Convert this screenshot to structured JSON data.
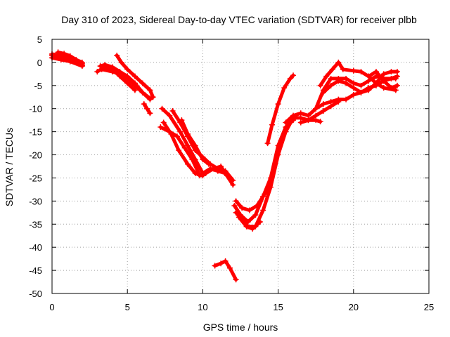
{
  "chart_data": {
    "type": "scatter",
    "title": "Day 310 of 2023, Sidereal Day-to-day VTEC variation (SDTVAR) for receiver plbb",
    "xlabel": "GPS time / hours",
    "ylabel": "SDTVAR / TECUs",
    "xlim": [
      0,
      25
    ],
    "ylim": [
      -50,
      5
    ],
    "xticks": [
      0,
      5,
      10,
      15,
      20,
      25
    ],
    "yticks": [
      5,
      0,
      -5,
      -10,
      -15,
      -20,
      -25,
      -30,
      -35,
      -40,
      -45,
      -50
    ],
    "grid": true,
    "marker": "+",
    "color": "#ff0000",
    "series": [
      {
        "name": "arc-early-1",
        "points": [
          [
            0,
            1.5
          ],
          [
            0.5,
            1.2
          ],
          [
            1,
            0.8
          ],
          [
            1.5,
            0.3
          ],
          [
            2,
            -0.3
          ]
        ]
      },
      {
        "name": "arc-early-2",
        "points": [
          [
            0,
            1.8
          ],
          [
            0.5,
            1.6
          ],
          [
            1,
            1.2
          ],
          [
            1.4,
            0.5
          ],
          [
            2,
            -0.6
          ]
        ]
      },
      {
        "name": "arc-early-3",
        "points": [
          [
            0,
            1.0
          ],
          [
            0.6,
            0.6
          ],
          [
            1.2,
            0.2
          ],
          [
            2,
            -0.8
          ]
        ]
      },
      {
        "name": "arc-early-4",
        "points": [
          [
            0.4,
            2.2
          ],
          [
            0.8,
            1.9
          ],
          [
            1.2,
            1.4
          ],
          [
            1.6,
            0.6
          ],
          [
            2,
            0.0
          ]
        ]
      },
      {
        "name": "arc-mid-1",
        "points": [
          [
            3.2,
            -0.8
          ],
          [
            3.5,
            -0.5
          ],
          [
            4,
            -1.0
          ],
          [
            4.5,
            -2.0
          ],
          [
            5,
            -3.0
          ],
          [
            5.5,
            -4.5
          ],
          [
            6,
            -6.5
          ],
          [
            6.5,
            -8.0
          ]
        ]
      },
      {
        "name": "arc-mid-2",
        "points": [
          [
            3.3,
            -1.5
          ],
          [
            4,
            -2.0
          ],
          [
            4.5,
            -2.5
          ],
          [
            5,
            -3.5
          ],
          [
            5.5,
            -5.0
          ],
          [
            6,
            -6.5
          ],
          [
            6.5,
            -7.8
          ]
        ]
      },
      {
        "name": "arc-mid-3",
        "points": [
          [
            4.3,
            1.5
          ],
          [
            4.6,
            0.0
          ],
          [
            5,
            -1.5
          ],
          [
            5.5,
            -3.0
          ],
          [
            6,
            -4.5
          ],
          [
            6.5,
            -6.0
          ],
          [
            6.7,
            -7.5
          ]
        ]
      },
      {
        "name": "arc-mid-4",
        "points": [
          [
            3.0,
            -2.0
          ],
          [
            3.5,
            -1.0
          ],
          [
            4,
            -1.5
          ],
          [
            4.5,
            -3.0
          ],
          [
            5,
            -4.5
          ],
          [
            5.5,
            -6.0
          ]
        ]
      },
      {
        "name": "arc-mid-5",
        "points": [
          [
            6.1,
            -9.0
          ],
          [
            6.3,
            -10.0
          ],
          [
            6.5,
            -11.0
          ]
        ]
      },
      {
        "name": "arc-big-1",
        "points": [
          [
            7.3,
            -10.0
          ],
          [
            7.8,
            -11.5
          ],
          [
            8.5,
            -15.0
          ],
          [
            9,
            -18.0
          ],
          [
            9.5,
            -21.0
          ],
          [
            10,
            -24.0
          ],
          [
            10.5,
            -23.0
          ],
          [
            11,
            -23.5
          ],
          [
            11.5,
            -24.0
          ],
          [
            12,
            -26.5
          ]
        ]
      },
      {
        "name": "arc-big-2",
        "points": [
          [
            7.2,
            -14.0
          ],
          [
            7.8,
            -15.0
          ],
          [
            8.3,
            -16.0
          ],
          [
            8.8,
            -18.5
          ],
          [
            9.3,
            -21.0
          ],
          [
            9.8,
            -24.5
          ],
          [
            10.2,
            -24.0
          ],
          [
            10.7,
            -23.0
          ],
          [
            11.2,
            -22.5
          ],
          [
            11.6,
            -24.5
          ]
        ]
      },
      {
        "name": "arc-big-3",
        "points": [
          [
            8.0,
            -10.5
          ],
          [
            8.5,
            -13.0
          ],
          [
            9,
            -16.0
          ],
          [
            9.5,
            -19.0
          ],
          [
            10,
            -20.5
          ],
          [
            10.5,
            -22.0
          ],
          [
            11,
            -23.0
          ],
          [
            11.5,
            -23.5
          ],
          [
            12,
            -25.5
          ]
        ]
      },
      {
        "name": "arc-big-4",
        "points": [
          [
            7.4,
            -13.0
          ],
          [
            7.9,
            -15.5
          ],
          [
            8.4,
            -19.0
          ],
          [
            9,
            -22.0
          ],
          [
            9.5,
            -24.0
          ],
          [
            10,
            -24.5
          ]
        ]
      },
      {
        "name": "arc-big-5",
        "points": [
          [
            8.6,
            -12.5
          ],
          [
            9,
            -15.5
          ],
          [
            9.5,
            -18.0
          ],
          [
            10,
            -21.0
          ],
          [
            10.4,
            -22.0
          ]
        ]
      },
      {
        "name": "arc-trough-1",
        "points": [
          [
            12.1,
            -31.0
          ],
          [
            12.5,
            -33.0
          ],
          [
            13,
            -34.5
          ],
          [
            13.5,
            -33.0
          ],
          [
            14,
            -29.0
          ],
          [
            14.5,
            -25.0
          ],
          [
            15,
            -18.0
          ],
          [
            15.5,
            -14.0
          ],
          [
            16,
            -12.5
          ]
        ]
      },
      {
        "name": "arc-trough-2",
        "points": [
          [
            12.2,
            -32.5
          ],
          [
            12.6,
            -34.0
          ],
          [
            13,
            -35.5
          ],
          [
            13.5,
            -35.5
          ],
          [
            14,
            -32.0
          ],
          [
            14.5,
            -27.0
          ],
          [
            15,
            -20.0
          ],
          [
            15.5,
            -15.0
          ],
          [
            16,
            -12.0
          ]
        ]
      },
      {
        "name": "arc-trough-3",
        "points": [
          [
            12.2,
            -30.0
          ],
          [
            12.6,
            -31.5
          ],
          [
            13.1,
            -32.0
          ],
          [
            13.6,
            -31.0
          ],
          [
            14.1,
            -28.5
          ],
          [
            14.5,
            -26.0
          ]
        ]
      },
      {
        "name": "arc-trough-4",
        "points": [
          [
            12.4,
            -33.5
          ],
          [
            12.9,
            -35.5
          ],
          [
            13.3,
            -36.0
          ],
          [
            13.8,
            -34.5
          ]
        ]
      },
      {
        "name": "arc-isolated",
        "points": [
          [
            10.8,
            -44.0
          ],
          [
            11.2,
            -43.5
          ],
          [
            11.5,
            -43.0
          ],
          [
            11.8,
            -44.5
          ],
          [
            12.2,
            -47.0
          ]
        ]
      },
      {
        "name": "arc-recovery",
        "points": [
          [
            14.3,
            -17.5
          ],
          [
            14.6,
            -13.5
          ],
          [
            15,
            -9.0
          ],
          [
            15.4,
            -5.5
          ],
          [
            15.8,
            -3.5
          ],
          [
            16.0,
            -2.8
          ]
        ]
      },
      {
        "name": "arc-late-1",
        "points": [
          [
            15.5,
            -13.0
          ],
          [
            16,
            -11.5
          ],
          [
            16.5,
            -11.0
          ],
          [
            17,
            -11.5
          ],
          [
            17.5,
            -10.0
          ],
          [
            18,
            -6.0
          ],
          [
            18.5,
            -3.5
          ],
          [
            19,
            -3.5
          ],
          [
            19.5,
            -3.5
          ],
          [
            20,
            -4.5
          ],
          [
            20.5,
            -5.0
          ],
          [
            21,
            -4.0
          ],
          [
            21.5,
            -3.0
          ],
          [
            22,
            -3.5
          ],
          [
            22.8,
            -3.5
          ]
        ]
      },
      {
        "name": "arc-late-2",
        "points": [
          [
            16,
            -12.0
          ],
          [
            16.5,
            -12.0
          ],
          [
            17,
            -12.5
          ],
          [
            17.5,
            -12.5
          ],
          [
            17.8,
            -12.8
          ]
        ]
      },
      {
        "name": "arc-late-3",
        "points": [
          [
            17.5,
            -10.0
          ],
          [
            18,
            -9.0
          ],
          [
            18.5,
            -8.5
          ],
          [
            19,
            -8.0
          ],
          [
            19.5,
            -8.0
          ],
          [
            20,
            -7.0
          ],
          [
            20.5,
            -6.5
          ],
          [
            21,
            -5.5
          ],
          [
            21.5,
            -5.0
          ],
          [
            22,
            -4.0
          ],
          [
            22.5,
            -3.5
          ],
          [
            22.9,
            -3.0
          ]
        ]
      },
      {
        "name": "arc-late-4",
        "points": [
          [
            17.8,
            -5.0
          ],
          [
            18.2,
            -3.0
          ],
          [
            18.6,
            -1.5
          ],
          [
            19.0,
            0.0
          ],
          [
            19.3,
            -1.5
          ],
          [
            20,
            -1.8
          ],
          [
            20.5,
            -2.0
          ],
          [
            21,
            -3.0
          ],
          [
            21.5,
            -4.5
          ],
          [
            22,
            -5.5
          ],
          [
            22.8,
            -6.0
          ]
        ]
      },
      {
        "name": "arc-late-5",
        "points": [
          [
            18.0,
            -6.5
          ],
          [
            18.5,
            -5.0
          ],
          [
            19,
            -4.0
          ],
          [
            19.5,
            -4.5
          ],
          [
            20,
            -5.5
          ],
          [
            20.5,
            -6.5
          ],
          [
            21,
            -6.0
          ],
          [
            21.5,
            -4.5
          ],
          [
            22,
            -2.5
          ],
          [
            22.5,
            -2.0
          ],
          [
            22.9,
            -2.0
          ]
        ]
      },
      {
        "name": "arc-late-6",
        "points": [
          [
            16.5,
            -13.0
          ],
          [
            17,
            -12.5
          ],
          [
            17.5,
            -11.5
          ],
          [
            18,
            -10.5
          ],
          [
            18.5,
            -9.5
          ],
          [
            19,
            -8.5
          ]
        ]
      },
      {
        "name": "arc-late-7",
        "points": [
          [
            21.0,
            -3.0
          ],
          [
            21.5,
            -2.0
          ],
          [
            22,
            -4.0
          ],
          [
            22.5,
            -5.5
          ],
          [
            22.9,
            -5.0
          ]
        ]
      }
    ]
  }
}
